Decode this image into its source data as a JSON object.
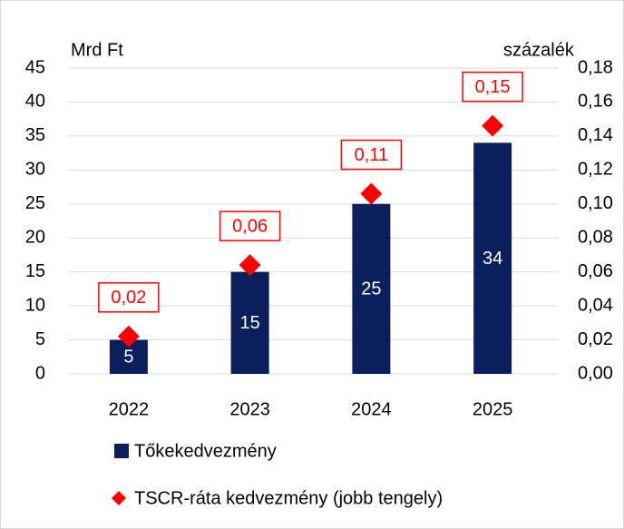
{
  "chart_data": {
    "type": "bar",
    "y_label": "Mrd Ft",
    "y2_label": "százalék",
    "categories": [
      "2022",
      "2023",
      "2024",
      "2025"
    ],
    "series": [
      {
        "name": "Tőkekedvezmény",
        "type": "bar",
        "color": "#0b1f5c",
        "values": [
          5,
          15,
          25,
          34
        ],
        "value_labels": [
          "5",
          "15",
          "25",
          "34"
        ]
      },
      {
        "name": "TSCR-ráta kedvezmény (jobb tengely)",
        "type": "diamond",
        "axis": "y2",
        "color": "#ff0000",
        "values": [
          0.022,
          0.064,
          0.106,
          0.146
        ],
        "value_labels": [
          "0,02",
          "0,06",
          "0,11",
          "0,15"
        ]
      }
    ],
    "ylim": [
      0,
      45
    ],
    "yticks": [
      0,
      5,
      10,
      15,
      20,
      25,
      30,
      35,
      40,
      45
    ],
    "y2lim": [
      0,
      0.18
    ],
    "y2ticks": [
      {
        "value": 0,
        "label": "0,00"
      },
      {
        "value": 0.02,
        "label": "0,02"
      },
      {
        "value": 0.04,
        "label": "0,04"
      },
      {
        "value": 0.06,
        "label": "0,06"
      },
      {
        "value": 0.08,
        "label": "0,08"
      },
      {
        "value": 0.1,
        "label": "0,10"
      },
      {
        "value": 0.12,
        "label": "0,12"
      },
      {
        "value": 0.14,
        "label": "0,14"
      },
      {
        "value": 0.16,
        "label": "0,16"
      },
      {
        "value": 0.18,
        "label": "0,18"
      }
    ],
    "grid": true
  }
}
